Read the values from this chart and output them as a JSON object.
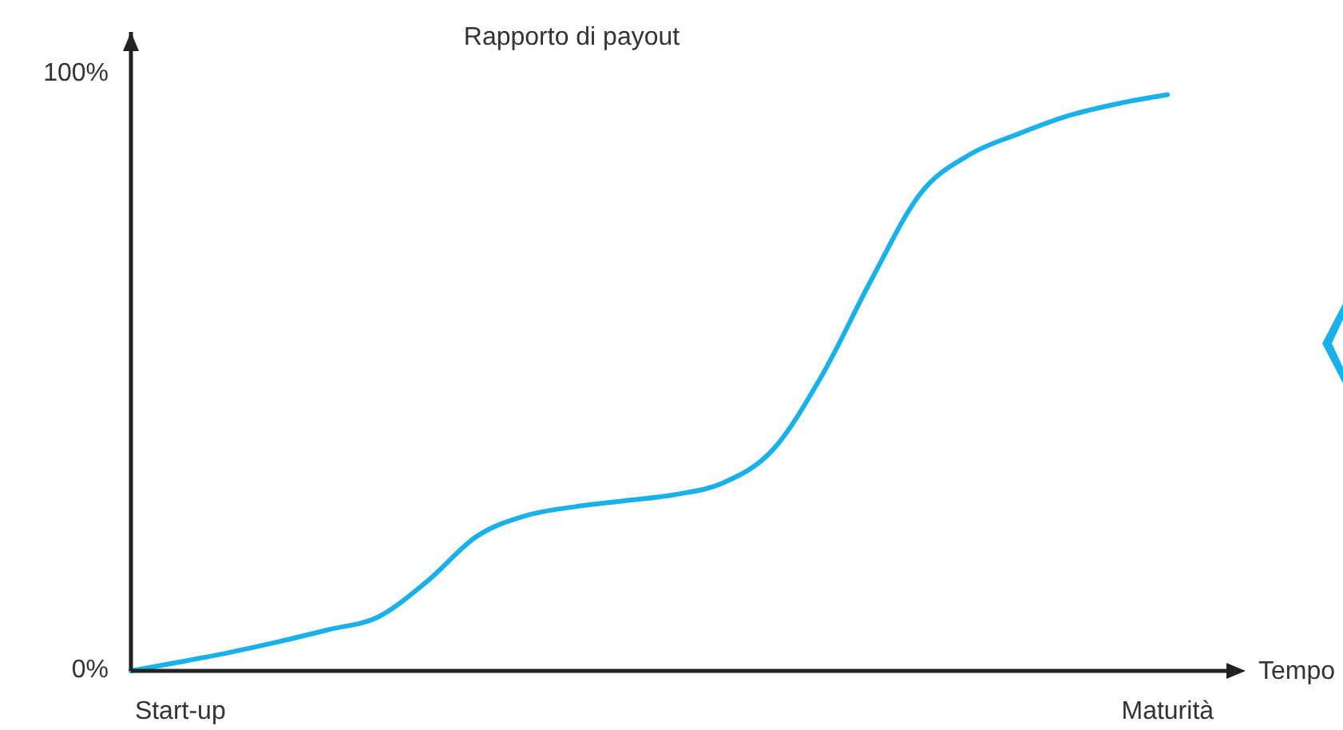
{
  "chart_data": {
    "type": "line",
    "ylabel": "Rapporto di payout",
    "xlabel": "Tempo",
    "categories": [
      null,
      "Start-up",
      null,
      null,
      null,
      null,
      null,
      null,
      null,
      null,
      null,
      null,
      null,
      null,
      null,
      null,
      null,
      null,
      null,
      null,
      null,
      "Maturità"
    ],
    "series": [
      {
        "color": "#1ab0ea",
        "values": [
          0,
          1.5,
          3.1,
          4.9,
          6.9,
          9,
          15,
          22.5,
          26,
          27.5,
          28.5,
          29.5,
          31.5,
          37,
          49.5,
          65.5,
          80,
          86.5,
          90,
          93,
          95,
          96.5
        ]
      }
    ],
    "ylim": [
      0,
      107
    ],
    "yticks": [
      {
        "value": 0,
        "label": "0%"
      },
      {
        "value": 100,
        "label": "100%"
      }
    ],
    "grid": false,
    "marker": "none",
    "line_style": "solid"
  }
}
